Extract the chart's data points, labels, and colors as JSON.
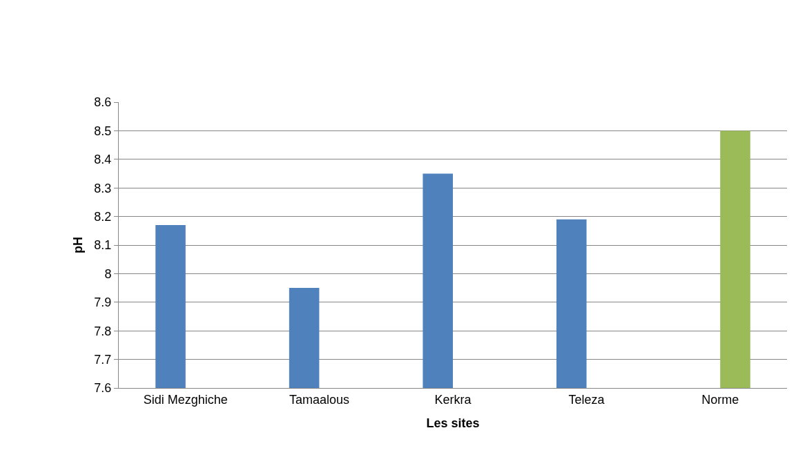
{
  "chart_data": {
    "type": "bar",
    "xlabel": "Les sites",
    "ylabel": "pH",
    "categories": [
      "Sidi Mezghiche",
      "Tamaalous",
      "Kerkra",
      "Teleza",
      "Norme"
    ],
    "series": [
      {
        "color": "#4f81bd",
        "values": [
          8.17,
          7.95,
          8.35,
          8.19,
          null
        ]
      },
      {
        "color": "#9bbb59",
        "values": [
          null,
          null,
          null,
          null,
          8.5
        ]
      }
    ],
    "ylim": [
      7.6,
      8.6
    ],
    "yticks": [
      7.6,
      7.7,
      7.8,
      7.9,
      8,
      8.1,
      8.2,
      8.3,
      8.4,
      8.5,
      8.6
    ],
    "grid": "y",
    "legend": false
  }
}
